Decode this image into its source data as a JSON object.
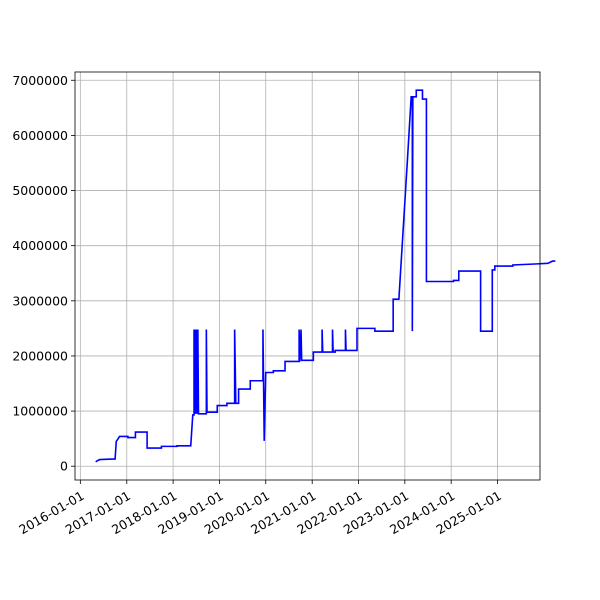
{
  "chart_data": {
    "type": "line",
    "title": "",
    "xlabel": "",
    "ylabel": "",
    "grid": true,
    "line_color": "#0000ff",
    "xlim": [
      "2015-11-20",
      "2025-12-01"
    ],
    "ylim": [
      -250000,
      7150000
    ],
    "x_ticks": [
      "2016-01-01",
      "2017-01-01",
      "2018-01-01",
      "2019-01-01",
      "2020-01-01",
      "2021-01-01",
      "2022-01-01",
      "2023-01-01",
      "2024-01-01",
      "2025-01-01"
    ],
    "y_ticks": [
      0,
      1000000,
      2000000,
      3000000,
      4000000,
      5000000,
      6000000,
      7000000
    ],
    "y_tick_labels": [
      "0",
      "1000000",
      "2000000",
      "3000000",
      "4000000",
      "5000000",
      "6000000",
      "7000000"
    ],
    "series": [
      {
        "values": [
          [
            "2016-05-01",
            80000
          ],
          [
            "2016-05-15",
            100000
          ],
          [
            "2016-06-01",
            120000
          ],
          [
            "2016-09-01",
            130000
          ],
          [
            "2016-10-01",
            130000
          ],
          [
            "2016-10-10",
            450000
          ],
          [
            "2016-10-25",
            500000
          ],
          [
            "2016-11-05",
            540000
          ],
          [
            "2017-01-10",
            540000
          ],
          [
            "2017-01-10",
            520000
          ],
          [
            "2017-03-10",
            520000
          ],
          [
            "2017-03-10",
            620000
          ],
          [
            "2017-06-10",
            620000
          ],
          [
            "2017-06-10",
            330000
          ],
          [
            "2017-10-01",
            330000
          ],
          [
            "2017-10-01",
            360000
          ],
          [
            "2018-02-01",
            360000
          ],
          [
            "2018-02-01",
            370000
          ],
          [
            "2018-05-20",
            370000
          ],
          [
            "2018-06-05",
            930000
          ],
          [
            "2018-06-15",
            930000
          ],
          [
            "2018-06-15",
            2480000
          ],
          [
            "2018-06-20",
            950000
          ],
          [
            "2018-06-25",
            2480000
          ],
          [
            "2018-06-30",
            950000
          ],
          [
            "2018-07-05",
            2480000
          ],
          [
            "2018-07-10",
            950000
          ],
          [
            "2018-07-15",
            2480000
          ],
          [
            "2018-07-20",
            950000
          ],
          [
            "2018-09-20",
            950000
          ],
          [
            "2018-09-20",
            2480000
          ],
          [
            "2018-09-25",
            980000
          ],
          [
            "2018-12-15",
            980000
          ],
          [
            "2018-12-15",
            1100000
          ],
          [
            "2019-03-01",
            1100000
          ],
          [
            "2019-03-01",
            1140000
          ],
          [
            "2019-05-01",
            1140000
          ],
          [
            "2019-05-01",
            2480000
          ],
          [
            "2019-05-10",
            1140000
          ],
          [
            "2019-06-01",
            1140000
          ],
          [
            "2019-06-01",
            1400000
          ],
          [
            "2019-09-01",
            1400000
          ],
          [
            "2019-09-01",
            1550000
          ],
          [
            "2019-12-10",
            1550000
          ],
          [
            "2019-12-10",
            2480000
          ],
          [
            "2019-12-20",
            460000
          ],
          [
            "2020-01-01",
            1700000
          ],
          [
            "2020-03-01",
            1700000
          ],
          [
            "2020-03-01",
            1730000
          ],
          [
            "2020-06-01",
            1730000
          ],
          [
            "2020-06-01",
            1900000
          ],
          [
            "2020-09-20",
            1900000
          ],
          [
            "2020-09-20",
            2480000
          ],
          [
            "2020-09-25",
            1900000
          ],
          [
            "2020-10-05",
            2480000
          ],
          [
            "2020-10-10",
            1920000
          ],
          [
            "2021-01-10",
            1920000
          ],
          [
            "2021-01-10",
            2070000
          ],
          [
            "2021-03-20",
            2070000
          ],
          [
            "2021-03-20",
            2480000
          ],
          [
            "2021-03-25",
            2070000
          ],
          [
            "2021-06-10",
            2070000
          ],
          [
            "2021-06-10",
            2480000
          ],
          [
            "2021-06-15",
            2070000
          ],
          [
            "2021-07-01",
            2070000
          ],
          [
            "2021-07-01",
            2100000
          ],
          [
            "2021-09-20",
            2100000
          ],
          [
            "2021-09-20",
            2480000
          ],
          [
            "2021-09-25",
            2100000
          ],
          [
            "2021-12-20",
            2100000
          ],
          [
            "2021-12-20",
            2500000
          ],
          [
            "2022-05-10",
            2500000
          ],
          [
            "2022-05-10",
            2450000
          ],
          [
            "2022-10-01",
            2450000
          ],
          [
            "2022-10-01",
            3030000
          ],
          [
            "2022-11-15",
            3030000
          ],
          [
            "2023-01-20",
            5500000
          ],
          [
            "2023-02-20",
            6700000
          ],
          [
            "2023-03-01",
            6700000
          ],
          [
            "2023-03-01",
            2450000
          ],
          [
            "2023-03-05",
            6700000
          ],
          [
            "2023-04-01",
            6700000
          ],
          [
            "2023-04-01",
            6820000
          ],
          [
            "2023-05-20",
            6820000
          ],
          [
            "2023-05-20",
            6660000
          ],
          [
            "2023-06-20",
            6660000
          ],
          [
            "2023-06-20",
            3350000
          ],
          [
            "2024-01-20",
            3350000
          ],
          [
            "2024-01-20",
            3370000
          ],
          [
            "2024-03-01",
            3370000
          ],
          [
            "2024-03-01",
            3540000
          ],
          [
            "2024-08-20",
            3540000
          ],
          [
            "2024-08-20",
            2450000
          ],
          [
            "2024-11-20",
            2450000
          ],
          [
            "2024-11-20",
            3560000
          ],
          [
            "2024-12-10",
            3560000
          ],
          [
            "2024-12-10",
            3630000
          ],
          [
            "2025-05-01",
            3630000
          ],
          [
            "2025-05-01",
            3650000
          ],
          [
            "2025-11-10",
            3670000
          ],
          [
            "2026-02-01",
            3680000
          ],
          [
            "2026-03-10",
            3720000
          ],
          [
            "2026-04-01",
            3720000
          ]
        ]
      }
    ]
  }
}
